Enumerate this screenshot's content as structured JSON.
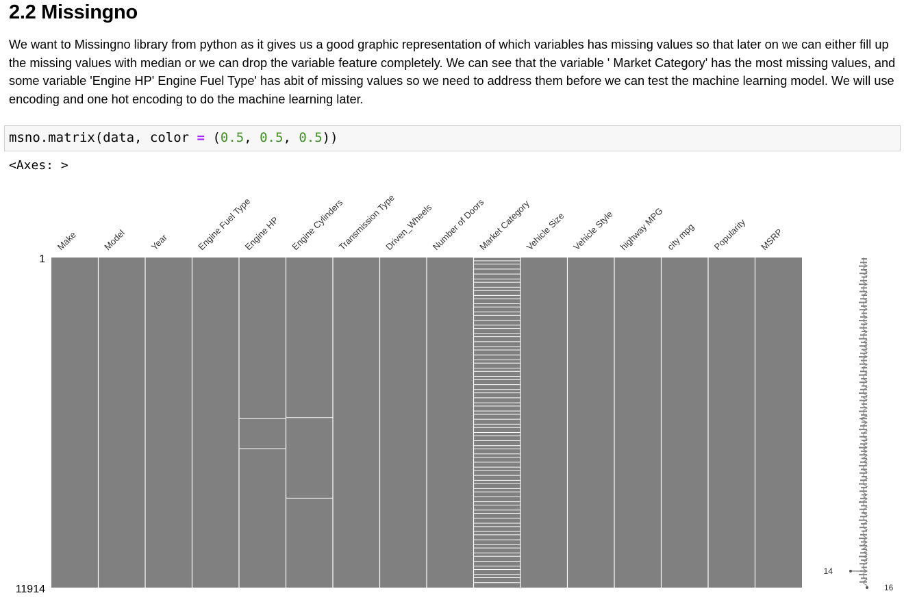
{
  "section": {
    "title": "2.2 Missingno",
    "paragraph": "We want to Missingno library from python as it gives us a good graphic representation of which variables has missing values so that later on we can either fill up the missing values with median or we can drop the variable feature completely. We can see that the variable ' Market Category' has the most missing values, and some variable 'Engine HP' Engine Fuel Type' has abit of missing values so we need to address them before we can test the machine learning model. We will use encoding and one hot encoding to do the machine learning later."
  },
  "code_cell": {
    "tokens": [
      {
        "text": "msno.matrix(data, color ",
        "cls": ""
      },
      {
        "text": "=",
        "cls": "tok-op"
      },
      {
        "text": " (",
        "cls": ""
      },
      {
        "text": "0.5",
        "cls": "tok-num"
      },
      {
        "text": ", ",
        "cls": ""
      },
      {
        "text": "0.5",
        "cls": "tok-num"
      },
      {
        "text": ", ",
        "cls": ""
      },
      {
        "text": "0.5",
        "cls": "tok-num"
      },
      {
        "text": "))",
        "cls": ""
      }
    ],
    "output": "<Axes: >"
  },
  "chart_data": {
    "type": "heatmap",
    "bar_color": "#808080",
    "columns": [
      "Make",
      "Model",
      "Year",
      "Engine Fuel Type",
      "Engine HP",
      "Engine Cylinders",
      "Transmission Type",
      "Driven_Wheels",
      "Number of Doors",
      "Market Category",
      "Vehicle Size",
      "Vehicle Style",
      "highway MPG",
      "city mpg",
      "Popularity",
      "MSRP"
    ],
    "row_range": [
      1,
      11914
    ],
    "y_tick_labels": [
      "1",
      "11914"
    ],
    "missing_row_fractions": {
      "Engine Fuel Type": [],
      "Engine HP": [
        0.488,
        0.579
      ],
      "Engine Cylinders": [
        0.485,
        0.729
      ],
      "Number of Doors": [],
      "Market Category": [
        0.0,
        0.01,
        0.02,
        0.035,
        0.05,
        0.065,
        0.075,
        0.09,
        0.1,
        0.115,
        0.125,
        0.14,
        0.15,
        0.165,
        0.175,
        0.19,
        0.205,
        0.215,
        0.23,
        0.24,
        0.255,
        0.27,
        0.28,
        0.295,
        0.31,
        0.32,
        0.335,
        0.345,
        0.36,
        0.37,
        0.385,
        0.4,
        0.41,
        0.425,
        0.44,
        0.45,
        0.465,
        0.475,
        0.49,
        0.505,
        0.515,
        0.53,
        0.54,
        0.555,
        0.57,
        0.58,
        0.595,
        0.605,
        0.62,
        0.635,
        0.645,
        0.66,
        0.675,
        0.685,
        0.7,
        0.71,
        0.725,
        0.74,
        0.75,
        0.765,
        0.775,
        0.79,
        0.805,
        0.815,
        0.83,
        0.84,
        0.855,
        0.87,
        0.88,
        0.895,
        0.905,
        0.92,
        0.935,
        0.945,
        0.96,
        0.97,
        0.985
      ]
    },
    "sparkline": {
      "min_label": "14",
      "max_label": "16",
      "min_complete": 14,
      "max_complete": 16
    }
  }
}
